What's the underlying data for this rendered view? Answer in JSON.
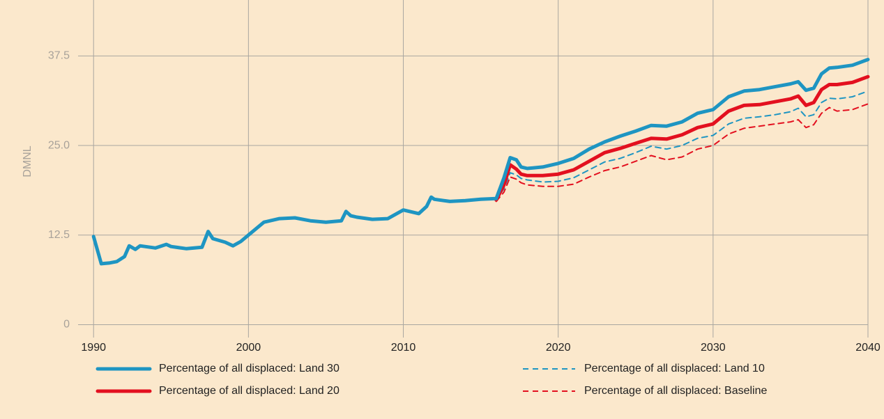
{
  "chart_data": {
    "type": "line",
    "y_label": "DMNL",
    "xlim": [
      1989,
      2040
    ],
    "ylim": [
      -1.8,
      45.3
    ],
    "xticks": [
      1990,
      2000,
      2010,
      2020,
      2030,
      2040
    ],
    "yticks": [
      0,
      12.5,
      {
        "value": 25,
        "label": "25.0"
      },
      37.5
    ],
    "grid": true,
    "series": [
      {
        "name": "Percentage of all displaced: Land 30",
        "color": "#1e95c2",
        "dash": false,
        "x": [
          1990,
          1990.5,
          1991,
          1991.5,
          1992,
          1992.3,
          1992.7,
          1993,
          1994,
          1994.7,
          1995,
          1996,
          1997,
          1997.4,
          1997.7,
          1998.5,
          1999,
          1999.5,
          2000,
          2001,
          2002,
          2003,
          2004,
          2005,
          2006,
          2006.3,
          2006.6,
          2007,
          2008,
          2009,
          2010,
          2011,
          2011.5,
          2011.8,
          2012,
          2013,
          2014,
          2015,
          2016,
          2016.5,
          2016.9,
          2017.3,
          2017.6,
          2018,
          2019,
          2020,
          2021,
          2022,
          2023,
          2024,
          2025,
          2026,
          2027,
          2028,
          2029,
          2030,
          2031,
          2032,
          2033,
          2034,
          2035,
          2035.5,
          2036,
          2036.5,
          2037,
          2037.5,
          2038,
          2039,
          2040
        ],
        "values": [
          12.3,
          8.5,
          8.6,
          8.8,
          9.5,
          11.0,
          10.5,
          11.0,
          10.7,
          11.2,
          10.9,
          10.6,
          10.8,
          13.0,
          12.0,
          11.5,
          11.0,
          11.6,
          12.5,
          14.3,
          14.8,
          14.9,
          14.5,
          14.3,
          14.5,
          15.8,
          15.2,
          15.0,
          14.7,
          14.8,
          16.0,
          15.5,
          16.5,
          17.8,
          17.5,
          17.2,
          17.3,
          17.5,
          17.6,
          20.5,
          23.3,
          23.0,
          22.0,
          21.8,
          22.0,
          22.5,
          23.2,
          24.5,
          25.5,
          26.3,
          27.0,
          27.8,
          27.7,
          28.3,
          29.5,
          30.0,
          31.8,
          32.6,
          32.8,
          33.2,
          33.6,
          33.9,
          32.7,
          33.0,
          35.0,
          35.8,
          35.9,
          36.2,
          37.0
        ]
      },
      {
        "name": "Percentage of all displaced: Land 20",
        "color": "#e3101f",
        "dash": false,
        "x": [
          2016,
          2016.5,
          2016.9,
          2017.3,
          2017.6,
          2018,
          2019,
          2020,
          2021,
          2022,
          2023,
          2024,
          2025,
          2026,
          2027,
          2028,
          2029,
          2030,
          2031,
          2032,
          2033,
          2034,
          2035,
          2035.5,
          2036,
          2036.5,
          2037,
          2037.5,
          2038,
          2039,
          2040
        ],
        "values": [
          17.4,
          19.5,
          22.3,
          21.7,
          21.0,
          20.8,
          20.8,
          21.0,
          21.6,
          22.8,
          24.0,
          24.6,
          25.3,
          26.0,
          25.9,
          26.5,
          27.5,
          28.0,
          29.8,
          30.6,
          30.7,
          31.1,
          31.5,
          31.9,
          30.6,
          31.0,
          32.8,
          33.5,
          33.5,
          33.8,
          34.6
        ]
      },
      {
        "name": "Percentage of all displaced: Land 10",
        "color": "#1e95c2",
        "dash": true,
        "x": [
          2016,
          2016.5,
          2016.9,
          2017.3,
          2017.6,
          2018,
          2019,
          2020,
          2021,
          2022,
          2023,
          2024,
          2025,
          2026,
          2027,
          2028,
          2029,
          2030,
          2031,
          2032,
          2033,
          2034,
          2035,
          2035.5,
          2036,
          2036.5,
          2037,
          2037.5,
          2038,
          2039,
          2040
        ],
        "values": [
          17.3,
          19.0,
          21.2,
          20.9,
          20.4,
          20.2,
          19.9,
          20.0,
          20.5,
          21.6,
          22.7,
          23.2,
          24.0,
          24.9,
          24.5,
          25.0,
          26.0,
          26.4,
          28.0,
          28.8,
          29.0,
          29.3,
          29.7,
          30.2,
          29.0,
          29.3,
          31.0,
          31.6,
          31.5,
          31.8,
          32.6
        ]
      },
      {
        "name": "Percentage of all displaced: Baseline",
        "color": "#e3101f",
        "dash": true,
        "x": [
          2016,
          2016.5,
          2016.9,
          2017.3,
          2017.6,
          2018,
          2019,
          2020,
          2021,
          2022,
          2023,
          2024,
          2025,
          2026,
          2027,
          2028,
          2029,
          2030,
          2031,
          2032,
          2033,
          2034,
          2035,
          2035.5,
          2036,
          2036.5,
          2037,
          2037.5,
          2038,
          2039,
          2040
        ],
        "values": [
          17.2,
          18.5,
          20.6,
          20.3,
          19.8,
          19.5,
          19.3,
          19.3,
          19.6,
          20.6,
          21.5,
          22.0,
          22.8,
          23.6,
          23.0,
          23.4,
          24.5,
          25.0,
          26.6,
          27.4,
          27.7,
          28.0,
          28.3,
          28.6,
          27.5,
          27.9,
          29.5,
          30.3,
          29.8,
          30.0,
          30.8
        ]
      }
    ]
  }
}
